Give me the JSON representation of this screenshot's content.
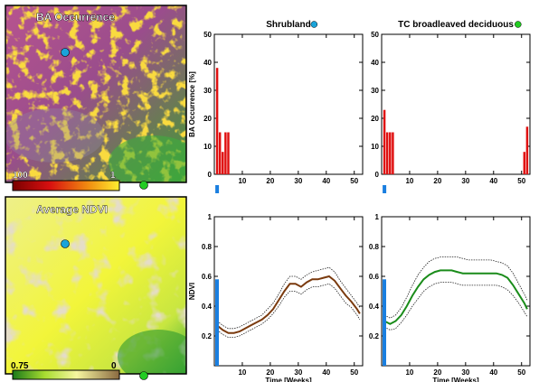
{
  "maps": {
    "ba": {
      "title": "BA Occurrence",
      "scale_left": "100",
      "scale_right": "1"
    },
    "ndvi": {
      "title": "Average NDVI",
      "scale_left": "0.75",
      "scale_right": "0"
    }
  },
  "colors": {
    "shrubland": "#1aa3d9",
    "broadleaved": "#22cc22",
    "bar": "#e01010",
    "ndvi_shrub": "#7a3a0e",
    "ndvi_broad": "#1a8c1a",
    "marker": "#1a7fe0"
  },
  "chart_data": [
    {
      "type": "bar",
      "panel": "top-left",
      "title": "Shrubland",
      "xlabel": "",
      "ylabel": "BA Occurrence [%]",
      "xlim": [
        0,
        53
      ],
      "ylim": [
        0,
        50
      ],
      "yticks": [
        0,
        10,
        20,
        30,
        40,
        50
      ],
      "xticks": [
        10,
        20,
        30,
        40,
        50
      ],
      "x": [
        1,
        2,
        3,
        4,
        5
      ],
      "values": [
        38,
        15,
        8,
        15,
        15
      ],
      "marker_week": 1
    },
    {
      "type": "bar",
      "panel": "top-right",
      "title": "TC broadleaved deciduous",
      "xlabel": "",
      "ylabel": "",
      "xlim": [
        0,
        53
      ],
      "ylim": [
        0,
        50
      ],
      "yticks": [
        0,
        10,
        20,
        30,
        40,
        50
      ],
      "xticks": [
        10,
        20,
        30,
        40,
        50
      ],
      "x": [
        1,
        2,
        3,
        4,
        51,
        52
      ],
      "values": [
        23,
        15,
        15,
        15,
        8,
        17
      ],
      "marker_week": 1
    },
    {
      "type": "line",
      "panel": "bottom-left",
      "title": "",
      "xlabel": "Time [Weeks]",
      "ylabel": "NDVI",
      "xlim": [
        0,
        53
      ],
      "ylim": [
        0,
        1
      ],
      "yticks": [
        0,
        0.2,
        0.4,
        0.6,
        0.8,
        1
      ],
      "xticks": [
        10,
        20,
        30,
        40,
        50
      ],
      "x": [
        1,
        3,
        5,
        7,
        9,
        11,
        13,
        15,
        17,
        19,
        21,
        23,
        25,
        27,
        29,
        31,
        33,
        35,
        37,
        39,
        41,
        43,
        45,
        47,
        49,
        51,
        52
      ],
      "mean": [
        0.27,
        0.24,
        0.22,
        0.22,
        0.23,
        0.25,
        0.27,
        0.29,
        0.31,
        0.34,
        0.38,
        0.44,
        0.5,
        0.55,
        0.55,
        0.53,
        0.56,
        0.58,
        0.58,
        0.59,
        0.6,
        0.57,
        0.52,
        0.47,
        0.43,
        0.38,
        0.35
      ],
      "upper": [
        0.3,
        0.27,
        0.25,
        0.25,
        0.26,
        0.28,
        0.3,
        0.32,
        0.34,
        0.38,
        0.42,
        0.48,
        0.55,
        0.6,
        0.6,
        0.58,
        0.61,
        0.63,
        0.64,
        0.65,
        0.66,
        0.63,
        0.57,
        0.52,
        0.47,
        0.42,
        0.39
      ],
      "lower": [
        0.24,
        0.21,
        0.19,
        0.19,
        0.2,
        0.22,
        0.24,
        0.26,
        0.28,
        0.31,
        0.35,
        0.4,
        0.46,
        0.5,
        0.5,
        0.48,
        0.51,
        0.53,
        0.53,
        0.54,
        0.55,
        0.52,
        0.47,
        0.42,
        0.39,
        0.34,
        0.31
      ],
      "marker_value": 0.58
    },
    {
      "type": "line",
      "panel": "bottom-right",
      "title": "",
      "xlabel": "Time [Weeks]",
      "ylabel": "",
      "xlim": [
        0,
        53
      ],
      "ylim": [
        0,
        1
      ],
      "yticks": [
        0,
        0.2,
        0.4,
        0.6,
        0.8,
        1
      ],
      "xticks": [
        10,
        20,
        30,
        40,
        50
      ],
      "x": [
        1,
        3,
        5,
        7,
        9,
        11,
        13,
        15,
        17,
        19,
        21,
        23,
        25,
        27,
        29,
        31,
        33,
        35,
        37,
        39,
        41,
        43,
        45,
        47,
        49,
        51,
        52
      ],
      "mean": [
        0.3,
        0.28,
        0.3,
        0.34,
        0.4,
        0.47,
        0.53,
        0.58,
        0.61,
        0.63,
        0.64,
        0.64,
        0.64,
        0.63,
        0.62,
        0.62,
        0.62,
        0.62,
        0.62,
        0.62,
        0.62,
        0.61,
        0.59,
        0.54,
        0.48,
        0.42,
        0.38
      ],
      "upper": [
        0.34,
        0.32,
        0.34,
        0.39,
        0.46,
        0.54,
        0.61,
        0.66,
        0.7,
        0.72,
        0.73,
        0.73,
        0.73,
        0.73,
        0.72,
        0.71,
        0.71,
        0.71,
        0.71,
        0.71,
        0.7,
        0.69,
        0.67,
        0.62,
        0.55,
        0.48,
        0.44
      ],
      "lower": [
        0.26,
        0.24,
        0.25,
        0.29,
        0.34,
        0.4,
        0.45,
        0.5,
        0.53,
        0.55,
        0.56,
        0.56,
        0.56,
        0.55,
        0.54,
        0.54,
        0.54,
        0.54,
        0.54,
        0.54,
        0.54,
        0.53,
        0.51,
        0.47,
        0.42,
        0.36,
        0.33
      ],
      "marker_value": 0.58
    }
  ]
}
